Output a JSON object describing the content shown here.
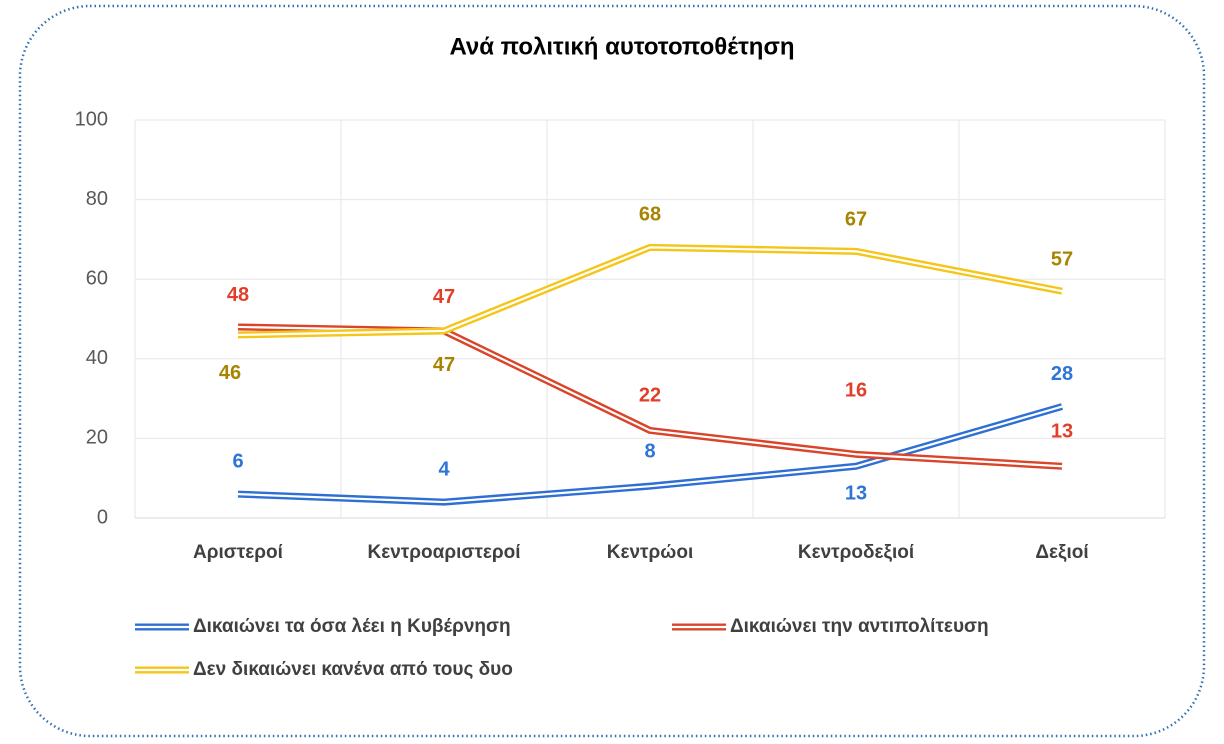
{
  "chart_data": {
    "type": "line",
    "title": "Ανά πολιτική αυτοτοποθέτηση",
    "categories": [
      "Αριστεροί",
      "Κεντροαριστεροί",
      "Κεντρώοι",
      "Κεντροδεξιοί",
      "Δεξιοί"
    ],
    "series": [
      {
        "name": "Δικαιώνει τα όσα λέει η Κυβέρνηση",
        "color": "#2e6fd4",
        "label_color": "#2e75d6",
        "values": [
          6,
          4,
          8,
          13,
          28
        ]
      },
      {
        "name": "Δικαιώνει την αντιπολίτευση",
        "color": "#d9442a",
        "label_color": "#e0402a",
        "values": [
          48,
          47,
          22,
          16,
          13
        ]
      },
      {
        "name": "Δεν δικαιώνει κανένα από τους δυο",
        "color": "#f5c518",
        "label_color": "#a88500",
        "values": [
          46,
          47,
          68,
          67,
          57
        ]
      }
    ],
    "ylim": [
      0,
      100
    ],
    "yticks": [
      0,
      20,
      40,
      60,
      80,
      100
    ],
    "grid": true
  }
}
